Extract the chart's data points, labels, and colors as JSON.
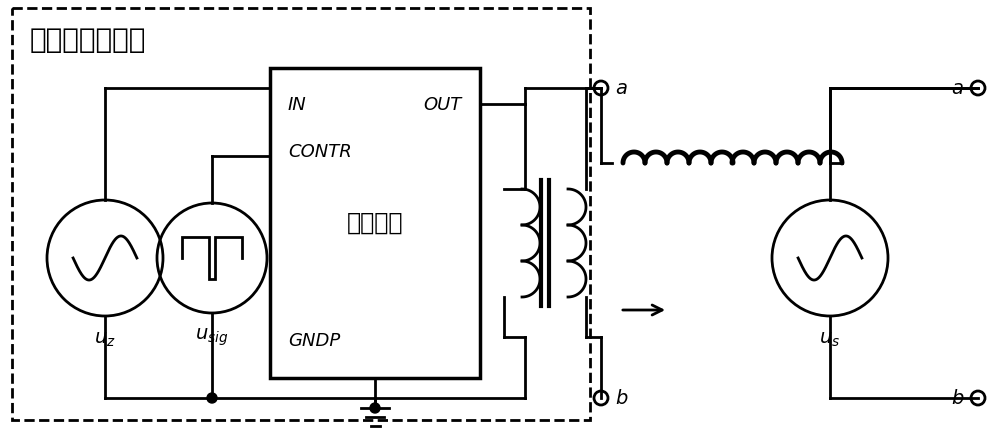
{
  "background_color": "#ffffff",
  "dashed_box_label": "信号调制发送端",
  "chip_label_in": "IN",
  "chip_label_out": "OUT",
  "chip_label_contr": "CONTR",
  "chip_label_center": "选通芙片",
  "chip_label_gndp": "GNDP",
  "uz_label": "$u_z$",
  "usig_label": "$u_{sig}$",
  "us_label": "$u_s$",
  "label_a": "$a$",
  "label_b": "$b$"
}
